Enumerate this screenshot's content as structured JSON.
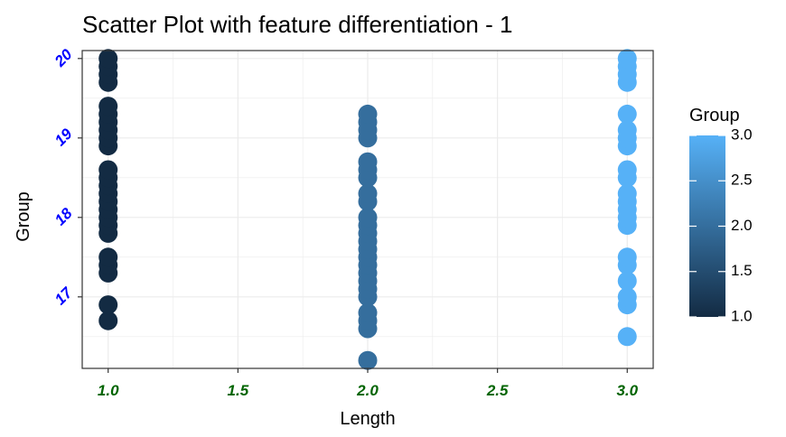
{
  "chart_data": {
    "type": "scatter",
    "title": "Scatter Plot with feature differentiation - 1",
    "xlabel": "Length",
    "ylabel": "Group",
    "xlim": [
      0.9,
      3.1
    ],
    "ylim": [
      16.1,
      20.1
    ],
    "x_ticks": [
      1.0,
      1.5,
      2.0,
      2.5,
      3.0
    ],
    "x_tick_labels": [
      "1.0",
      "1.5",
      "2.0",
      "2.5",
      "3.0"
    ],
    "y_ticks": [
      17,
      18,
      19,
      20
    ],
    "y_tick_labels": [
      "17",
      "18",
      "19",
      "20"
    ],
    "grid": true,
    "series": [
      {
        "group": 1,
        "x": 1.0,
        "y": [
          16.7,
          16.9,
          17.3,
          17.4,
          17.5,
          17.8,
          17.9,
          18.0,
          18.1,
          18.2,
          18.3,
          18.4,
          18.5,
          18.6,
          18.9,
          19.0,
          19.1,
          19.2,
          19.3,
          19.4,
          19.7,
          19.8,
          19.9,
          20.0
        ]
      },
      {
        "group": 2,
        "x": 2.0,
        "y": [
          16.2,
          16.6,
          16.7,
          16.8,
          17.0,
          17.1,
          17.2,
          17.3,
          17.4,
          17.5,
          17.6,
          17.7,
          17.8,
          17.9,
          18.0,
          18.2,
          18.3,
          18.5,
          18.6,
          18.7,
          19.0,
          19.1,
          19.2,
          19.3
        ]
      },
      {
        "group": 3,
        "x": 3.0,
        "y": [
          16.5,
          16.9,
          17.0,
          17.2,
          17.4,
          17.5,
          17.9,
          18.0,
          18.1,
          18.2,
          18.3,
          18.5,
          18.6,
          18.9,
          19.0,
          19.1,
          19.3,
          19.7,
          19.8,
          19.9,
          20.0
        ]
      }
    ],
    "legend": {
      "title": "Group",
      "position": "right",
      "type": "colorbar",
      "range": [
        1.0,
        3.0
      ],
      "ticks": [
        "1.0",
        "1.5",
        "2.0",
        "2.5",
        "3.0"
      ],
      "color_low": "#132B43",
      "color_high": "#56B1F7"
    },
    "colors": {
      "low": "#132B43",
      "high": "#56B1F7",
      "x_tick_labels": "#006400",
      "y_tick_labels": "#0000ff",
      "grid": "#ebebeb",
      "panel_border": "#333333"
    }
  }
}
